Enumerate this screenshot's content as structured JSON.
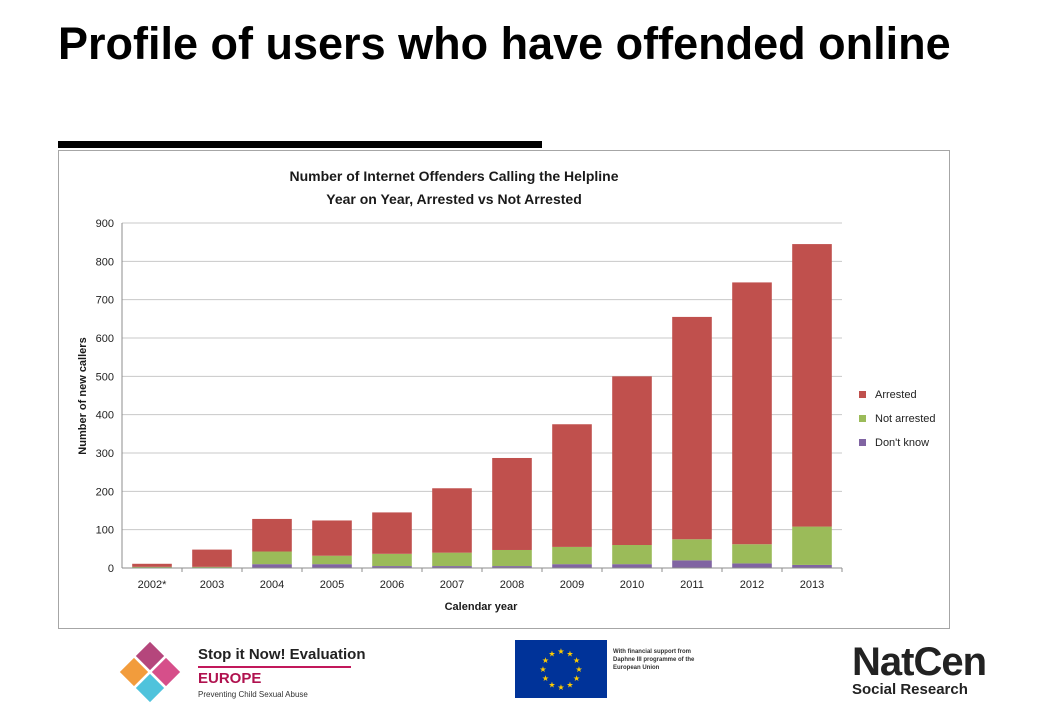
{
  "slide": {
    "title": "Profile of users who have offended online"
  },
  "chart_data": {
    "type": "bar",
    "stacked": true,
    "title": "Number of Internet Offenders Calling the Helpline",
    "subtitle": "Year on Year, Arrested vs Not Arrested",
    "xlabel": "Calendar year",
    "ylabel": "Number of new callers",
    "ylim": [
      0,
      900
    ],
    "yticks": [
      0,
      100,
      200,
      300,
      400,
      500,
      600,
      700,
      800,
      900
    ],
    "grid": true,
    "legend_position": "right",
    "categories": [
      "2002*",
      "2003",
      "2004",
      "2005",
      "2006",
      "2007",
      "2008",
      "2009",
      "2010",
      "2011",
      "2012",
      "2013"
    ],
    "series": [
      {
        "name": "Don't know",
        "color": "#8064a2",
        "values": [
          0,
          0,
          10,
          10,
          5,
          5,
          5,
          10,
          10,
          20,
          12,
          8
        ]
      },
      {
        "name": "Not arrested",
        "color": "#9bbb59",
        "values": [
          3,
          3,
          33,
          22,
          32,
          35,
          42,
          45,
          50,
          55,
          50,
          100
        ]
      },
      {
        "name": "Arrested",
        "color": "#c0504d",
        "values": [
          8,
          45,
          85,
          92,
          108,
          168,
          240,
          320,
          440,
          580,
          683,
          737
        ]
      }
    ],
    "legend_order": [
      "Arrested",
      "Not arrested",
      "Don't know"
    ]
  },
  "footer": {
    "stop_it_now_line1": "Stop it Now! Evaluation",
    "stop_it_now_line2": "EUROPE",
    "stop_it_now_tagline": "Preventing Child Sexual Abuse",
    "eu_support_text": "With financial support from Daphne III programme of the European Union",
    "natcen_line1": "NatCen",
    "natcen_line2": "Social Research"
  }
}
